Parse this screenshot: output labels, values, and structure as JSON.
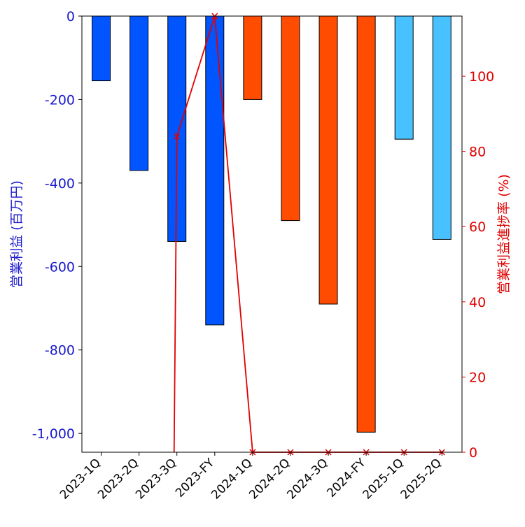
{
  "chart_data": {
    "type": "bar",
    "categories": [
      "2023-1Q",
      "2023-2Q",
      "2023-3Q",
      "2023-FY",
      "2024-1Q",
      "2024-2Q",
      "2024-3Q",
      "2024-FY",
      "2025-1Q",
      "2025-2Q"
    ],
    "series": [
      {
        "values": [
          -155,
          -370,
          -540,
          -740,
          -200,
          -490,
          -690,
          -997,
          -295,
          -535
        ],
        "colors": [
          "#0055ff",
          "#0055ff",
          "#0055ff",
          "#0055ff",
          "#ff4c00",
          "#ff4c00",
          "#ff4c00",
          "#ff4c00",
          "#47c1ff",
          "#47c1ff"
        ],
        "axis": "left"
      },
      {
        "type": "line",
        "values": [
          null,
          null,
          84,
          116,
          0,
          0,
          0,
          0,
          0,
          0
        ],
        "color": "#e00000",
        "marker": "x",
        "axis": "right"
      }
    ],
    "ylabel": "営業利益 (百万円)",
    "y2label": "営業利益進捗率 (%)",
    "ylim": [
      -1045,
      0
    ],
    "y2lim": [
      0,
      116
    ],
    "yticks": [
      0,
      -200,
      -400,
      -600,
      -800,
      -1000
    ],
    "ytick_labels": [
      "0",
      "-200",
      "-400",
      "-600",
      "-800",
      "-1,000"
    ],
    "y2ticks": [
      0,
      20,
      40,
      60,
      80,
      100
    ],
    "y2tick_labels": [
      "0",
      "20",
      "40",
      "60",
      "80",
      "100"
    ],
    "grid": false,
    "legend": "none"
  }
}
